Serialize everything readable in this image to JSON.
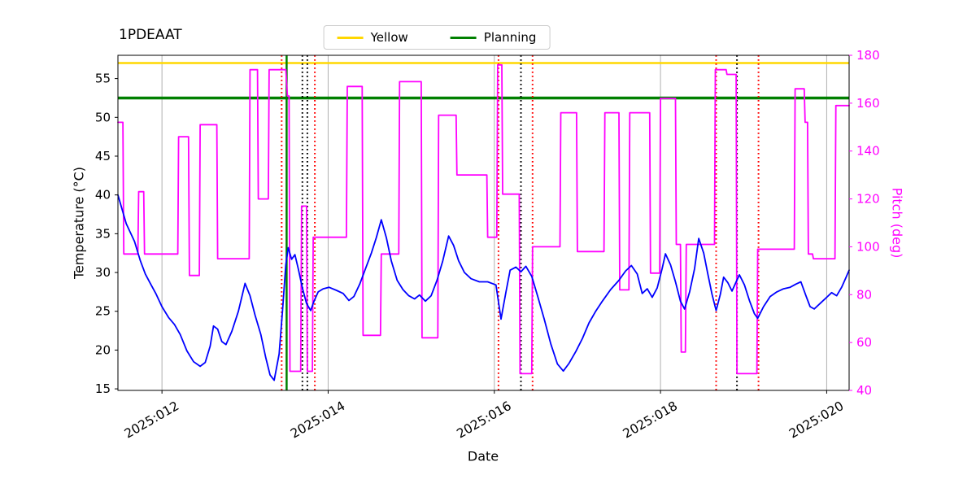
{
  "title": "1PDEAAT",
  "chart_data": {
    "type": "line",
    "title": "1PDEAAT",
    "xlabel": "Date",
    "ylabel_left": "Temperature (°C)",
    "ylabel_right": "Pitch (deg)",
    "xlim": [
      11.47,
      20.27
    ],
    "ylim_left": [
      14.8,
      58.0
    ],
    "ylim_right": [
      40,
      180
    ],
    "x_ticks": [
      {
        "value": 12,
        "label": "2025:012"
      },
      {
        "value": 14,
        "label": "2025:014"
      },
      {
        "value": 16,
        "label": "2025:016"
      },
      {
        "value": 18,
        "label": "2025:018"
      },
      {
        "value": 20,
        "label": "2025:020"
      }
    ],
    "y_ticks_left": [
      15,
      20,
      25,
      30,
      35,
      40,
      45,
      50,
      55
    ],
    "y_ticks_right": [
      40,
      60,
      80,
      100,
      120,
      140,
      160,
      180
    ],
    "grid": {
      "vertical": true,
      "color": "#b0b0b0"
    },
    "legend": {
      "position": "upper center",
      "items": [
        {
          "label": "Yellow",
          "color": "#ffd700"
        },
        {
          "label": "Planning",
          "color": "#008000"
        }
      ]
    },
    "h_lines": [
      {
        "name": "yellow-limit-line",
        "y": 57.0,
        "color": "#ffd700",
        "width": 2.5
      },
      {
        "name": "planning-limit-line",
        "y": 52.5,
        "color": "#008000",
        "width": 3.5
      }
    ],
    "v_lines": [
      {
        "name": "red-dotted-1",
        "x": 13.44,
        "color": "#ff0000",
        "style": "dotted",
        "width": 2
      },
      {
        "name": "green-solid-vline",
        "x": 13.5,
        "color": "#008000",
        "style": "solid",
        "width": 2.5
      },
      {
        "name": "black-dotted-1",
        "x": 13.69,
        "color": "#000000",
        "style": "dotted",
        "width": 2
      },
      {
        "name": "black-dotted-2",
        "x": 13.75,
        "color": "#000000",
        "style": "dotted",
        "width": 2
      },
      {
        "name": "red-dotted-2",
        "x": 13.84,
        "color": "#ff0000",
        "style": "dotted",
        "width": 2
      },
      {
        "name": "red-dotted-3",
        "x": 16.05,
        "color": "#ff0000",
        "style": "dotted",
        "width": 2
      },
      {
        "name": "black-dotted-3",
        "x": 16.32,
        "color": "#000000",
        "style": "dotted",
        "width": 2
      },
      {
        "name": "red-dotted-4",
        "x": 16.46,
        "color": "#ff0000",
        "style": "dotted",
        "width": 2
      },
      {
        "name": "red-dotted-5",
        "x": 18.67,
        "color": "#ff0000",
        "style": "dotted",
        "width": 2
      },
      {
        "name": "black-dotted-4",
        "x": 18.92,
        "color": "#000000",
        "style": "dotted",
        "width": 2
      },
      {
        "name": "red-dotted-6",
        "x": 19.18,
        "color": "#ff0000",
        "style": "dotted",
        "width": 2
      }
    ],
    "series": [
      {
        "name": "pitch",
        "axis": "right",
        "color": "#ff00ff",
        "width": 1.8,
        "points": [
          [
            11.47,
            152
          ],
          [
            11.53,
            152
          ],
          [
            11.54,
            97
          ],
          [
            11.71,
            97
          ],
          [
            11.72,
            123
          ],
          [
            11.78,
            123
          ],
          [
            11.79,
            97
          ],
          [
            12.19,
            97
          ],
          [
            12.2,
            146
          ],
          [
            12.32,
            146
          ],
          [
            12.33,
            88
          ],
          [
            12.45,
            88
          ],
          [
            12.46,
            151
          ],
          [
            12.66,
            151
          ],
          [
            12.67,
            95
          ],
          [
            13.05,
            95
          ],
          [
            13.06,
            174
          ],
          [
            13.15,
            174
          ],
          [
            13.16,
            120
          ],
          [
            13.28,
            120
          ],
          [
            13.29,
            174
          ],
          [
            13.49,
            174
          ],
          [
            13.51,
            163
          ],
          [
            13.53,
            163
          ],
          [
            13.54,
            48
          ],
          [
            13.67,
            48
          ],
          [
            13.68,
            117
          ],
          [
            13.74,
            117
          ],
          [
            13.75,
            48
          ],
          [
            13.81,
            48
          ],
          [
            13.82,
            104
          ],
          [
            14.22,
            104
          ],
          [
            14.23,
            167
          ],
          [
            14.41,
            167
          ],
          [
            14.42,
            63
          ],
          [
            14.63,
            63
          ],
          [
            14.64,
            97
          ],
          [
            14.85,
            97
          ],
          [
            14.86,
            169
          ],
          [
            15.12,
            169
          ],
          [
            15.13,
            62
          ],
          [
            15.32,
            62
          ],
          [
            15.33,
            155
          ],
          [
            15.54,
            155
          ],
          [
            15.55,
            130
          ],
          [
            15.91,
            130
          ],
          [
            15.92,
            104
          ],
          [
            16.03,
            104
          ],
          [
            16.04,
            176
          ],
          [
            16.09,
            176
          ],
          [
            16.1,
            122
          ],
          [
            16.3,
            122
          ],
          [
            16.31,
            47
          ],
          [
            16.45,
            47
          ],
          [
            16.46,
            100
          ],
          [
            16.79,
            100
          ],
          [
            16.8,
            156
          ],
          [
            16.99,
            156
          ],
          [
            17.0,
            98
          ],
          [
            17.32,
            98
          ],
          [
            17.33,
            156
          ],
          [
            17.5,
            156
          ],
          [
            17.51,
            82
          ],
          [
            17.62,
            82
          ],
          [
            17.63,
            156
          ],
          [
            17.87,
            156
          ],
          [
            17.88,
            89
          ],
          [
            17.99,
            89
          ],
          [
            18.0,
            162
          ],
          [
            18.18,
            162
          ],
          [
            18.19,
            101
          ],
          [
            18.24,
            101
          ],
          [
            18.25,
            56
          ],
          [
            18.3,
            56
          ],
          [
            18.31,
            101
          ],
          [
            18.65,
            101
          ],
          [
            18.66,
            174
          ],
          [
            18.79,
            174
          ],
          [
            18.8,
            172
          ],
          [
            18.91,
            172
          ],
          [
            18.92,
            47
          ],
          [
            19.16,
            47
          ],
          [
            19.17,
            99
          ],
          [
            19.61,
            99
          ],
          [
            19.62,
            166
          ],
          [
            19.73,
            166
          ],
          [
            19.74,
            152
          ],
          [
            19.77,
            152
          ],
          [
            19.78,
            97
          ],
          [
            19.83,
            97
          ],
          [
            19.84,
            95
          ],
          [
            20.1,
            95
          ],
          [
            20.11,
            159
          ],
          [
            20.27,
            159
          ]
        ]
      },
      {
        "name": "temperature",
        "axis": "left",
        "color": "#0000ff",
        "width": 1.8,
        "points": [
          [
            11.47,
            40.0
          ],
          [
            11.57,
            36.3
          ],
          [
            11.67,
            34.0
          ],
          [
            11.74,
            31.5
          ],
          [
            11.8,
            29.8
          ],
          [
            11.86,
            28.6
          ],
          [
            11.93,
            27.2
          ],
          [
            12.0,
            25.6
          ],
          [
            12.08,
            24.2
          ],
          [
            12.15,
            23.3
          ],
          [
            12.22,
            22.0
          ],
          [
            12.3,
            19.9
          ],
          [
            12.38,
            18.5
          ],
          [
            12.46,
            17.9
          ],
          [
            12.52,
            18.4
          ],
          [
            12.58,
            20.5
          ],
          [
            12.62,
            23.1
          ],
          [
            12.67,
            22.7
          ],
          [
            12.72,
            21.1
          ],
          [
            12.77,
            20.7
          ],
          [
            12.84,
            22.4
          ],
          [
            12.92,
            25.0
          ],
          [
            13.0,
            28.6
          ],
          [
            13.06,
            27.0
          ],
          [
            13.12,
            24.5
          ],
          [
            13.19,
            22.0
          ],
          [
            13.25,
            19.0
          ],
          [
            13.3,
            16.8
          ],
          [
            13.35,
            16.1
          ],
          [
            13.41,
            19.5
          ],
          [
            13.45,
            25.0
          ],
          [
            13.49,
            31.0
          ],
          [
            13.52,
            33.2
          ],
          [
            13.56,
            31.7
          ],
          [
            13.6,
            32.3
          ],
          [
            13.64,
            30.5
          ],
          [
            13.69,
            28.0
          ],
          [
            13.74,
            26.0
          ],
          [
            13.79,
            25.1
          ],
          [
            13.83,
            26.3
          ],
          [
            13.88,
            27.5
          ],
          [
            13.94,
            27.9
          ],
          [
            14.01,
            28.1
          ],
          [
            14.1,
            27.7
          ],
          [
            14.18,
            27.3
          ],
          [
            14.25,
            26.4
          ],
          [
            14.31,
            26.9
          ],
          [
            14.38,
            28.5
          ],
          [
            14.45,
            30.5
          ],
          [
            14.52,
            32.5
          ],
          [
            14.58,
            34.5
          ],
          [
            14.64,
            36.8
          ],
          [
            14.7,
            34.5
          ],
          [
            14.76,
            31.5
          ],
          [
            14.83,
            29.0
          ],
          [
            14.9,
            27.8
          ],
          [
            14.97,
            27.0
          ],
          [
            15.04,
            26.6
          ],
          [
            15.1,
            27.1
          ],
          [
            15.17,
            26.3
          ],
          [
            15.24,
            27.0
          ],
          [
            15.31,
            29.0
          ],
          [
            15.38,
            31.5
          ],
          [
            15.45,
            34.7
          ],
          [
            15.51,
            33.5
          ],
          [
            15.57,
            31.5
          ],
          [
            15.64,
            30.0
          ],
          [
            15.72,
            29.2
          ],
          [
            15.82,
            28.8
          ],
          [
            15.92,
            28.8
          ],
          [
            16.02,
            28.4
          ],
          [
            16.08,
            24.0
          ],
          [
            16.14,
            27.5
          ],
          [
            16.19,
            30.3
          ],
          [
            16.26,
            30.7
          ],
          [
            16.32,
            30.1
          ],
          [
            16.38,
            30.8
          ],
          [
            16.45,
            29.5
          ],
          [
            16.52,
            27.0
          ],
          [
            16.6,
            24.0
          ],
          [
            16.68,
            20.8
          ],
          [
            16.76,
            18.2
          ],
          [
            16.83,
            17.3
          ],
          [
            16.9,
            18.3
          ],
          [
            16.98,
            19.8
          ],
          [
            17.06,
            21.5
          ],
          [
            17.14,
            23.5
          ],
          [
            17.22,
            25.0
          ],
          [
            17.3,
            26.3
          ],
          [
            17.4,
            27.8
          ],
          [
            17.5,
            29.0
          ],
          [
            17.58,
            30.2
          ],
          [
            17.65,
            30.9
          ],
          [
            17.72,
            29.8
          ],
          [
            17.78,
            27.3
          ],
          [
            17.84,
            27.9
          ],
          [
            17.9,
            26.8
          ],
          [
            17.96,
            28.0
          ],
          [
            18.02,
            30.5
          ],
          [
            18.06,
            32.4
          ],
          [
            18.12,
            31.0
          ],
          [
            18.18,
            28.8
          ],
          [
            18.24,
            26.3
          ],
          [
            18.29,
            25.3
          ],
          [
            18.35,
            27.5
          ],
          [
            18.41,
            30.5
          ],
          [
            18.46,
            34.4
          ],
          [
            18.52,
            32.5
          ],
          [
            18.57,
            29.8
          ],
          [
            18.62,
            27.2
          ],
          [
            18.67,
            25.1
          ],
          [
            18.72,
            27.2
          ],
          [
            18.76,
            29.4
          ],
          [
            18.81,
            28.7
          ],
          [
            18.86,
            27.6
          ],
          [
            18.91,
            28.8
          ],
          [
            18.95,
            29.7
          ],
          [
            19.01,
            28.4
          ],
          [
            19.07,
            26.4
          ],
          [
            19.13,
            24.7
          ],
          [
            19.17,
            24.1
          ],
          [
            19.24,
            25.6
          ],
          [
            19.32,
            26.9
          ],
          [
            19.4,
            27.5
          ],
          [
            19.48,
            27.9
          ],
          [
            19.56,
            28.1
          ],
          [
            19.63,
            28.5
          ],
          [
            19.69,
            28.8
          ],
          [
            19.75,
            27.0
          ],
          [
            19.8,
            25.6
          ],
          [
            19.85,
            25.3
          ],
          [
            19.93,
            26.1
          ],
          [
            20.01,
            26.9
          ],
          [
            20.06,
            27.4
          ],
          [
            20.12,
            27.0
          ],
          [
            20.18,
            28.1
          ],
          [
            20.23,
            29.3
          ],
          [
            20.27,
            30.3
          ]
        ]
      }
    ]
  }
}
